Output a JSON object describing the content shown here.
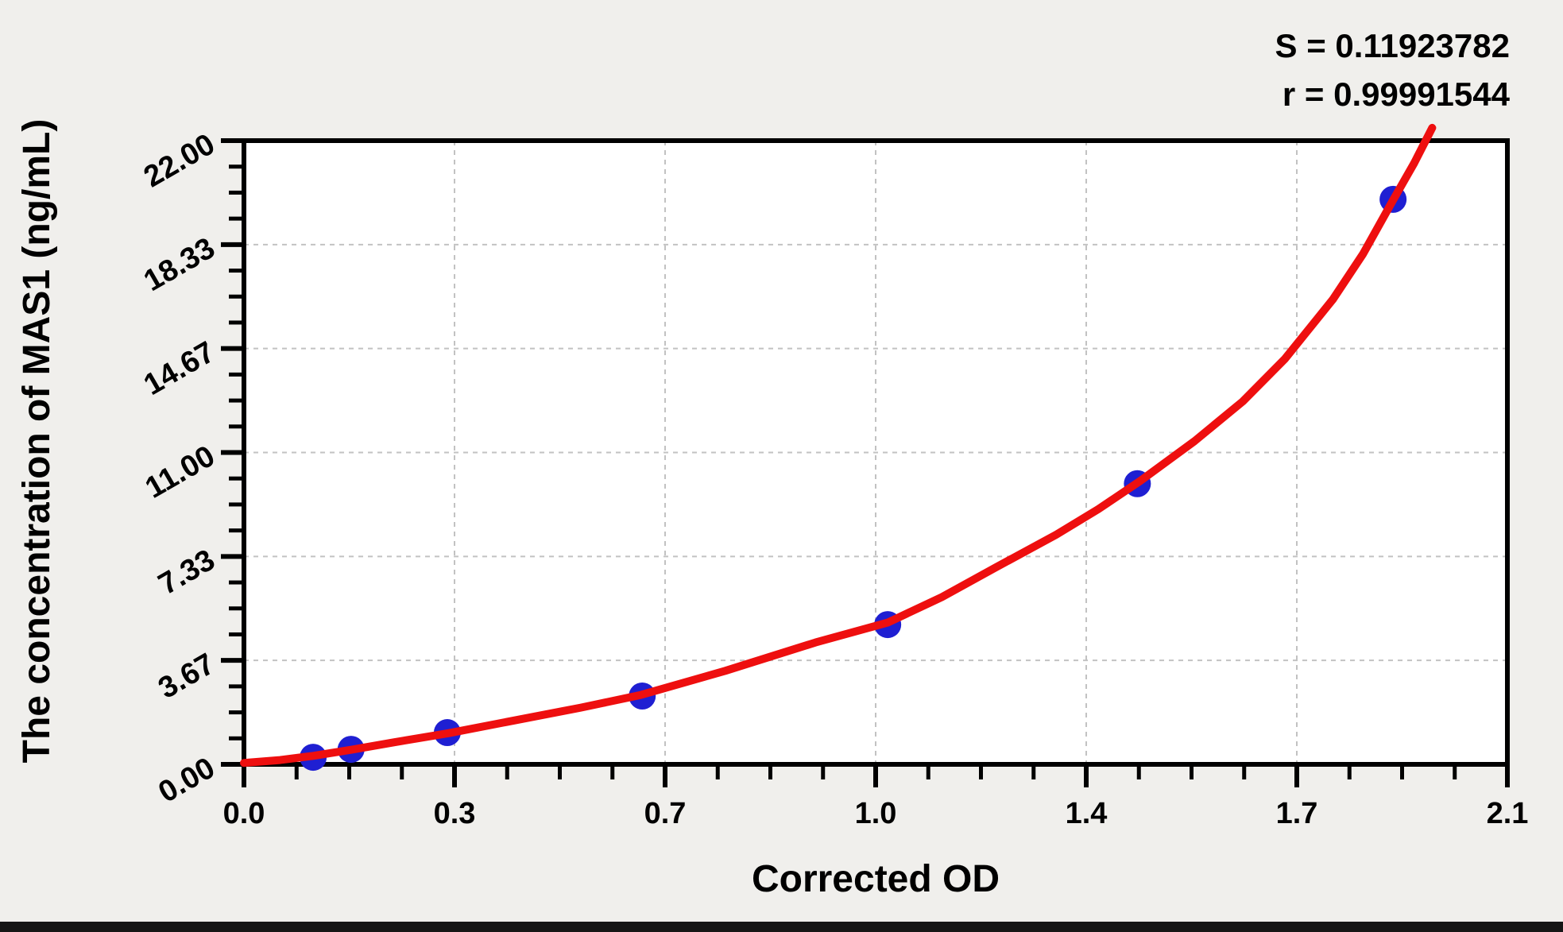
{
  "window": {
    "background_color": "#f0efec",
    "bottom_bar_color": "#161616"
  },
  "stats": {
    "s": "S = 0.11923782",
    "r": "r = 0.99991544"
  },
  "chart_data": {
    "type": "scatter",
    "title": "",
    "xlabel": "Corrected OD",
    "ylabel": "The concentration of MAS1 (ng/mL)",
    "legend": "none",
    "grid": "dashed gray lines at interior major ticks",
    "x_axis": {
      "min": 0,
      "max": 2.1,
      "tick_values": [
        0,
        0.35,
        0.7,
        1.05,
        1.4,
        1.75,
        2.1
      ],
      "tick_labels": [
        "0.0",
        "0.3",
        "0.7",
        "1.0",
        "1.4",
        "1.7",
        "2.1"
      ],
      "minor_divisions": 4
    },
    "y_axis": {
      "min": 0,
      "max": 22,
      "tick_values": [
        0,
        3.667,
        7.333,
        11,
        14.667,
        18.333,
        22
      ],
      "tick_labels": [
        "0.00",
        "3.67",
        "7.33",
        "11.00",
        "14.67",
        "18.33",
        "22.00"
      ],
      "minor_divisions": 4
    },
    "points": [
      {
        "od": 0.115,
        "concentration": 0.25
      },
      {
        "od": 0.178,
        "concentration": 0.53
      },
      {
        "od": 0.338,
        "concentration": 1.12
      },
      {
        "od": 0.662,
        "concentration": 2.41
      },
      {
        "od": 1.07,
        "concentration": 4.93
      },
      {
        "od": 1.485,
        "concentration": 9.9
      },
      {
        "od": 1.91,
        "concentration": 19.93
      }
    ],
    "curve_points": [
      [
        0.0,
        0.05
      ],
      [
        0.06,
        0.15
      ],
      [
        0.115,
        0.3
      ],
      [
        0.18,
        0.52
      ],
      [
        0.25,
        0.78
      ],
      [
        0.34,
        1.1
      ],
      [
        0.45,
        1.55
      ],
      [
        0.56,
        2.0
      ],
      [
        0.66,
        2.45
      ],
      [
        0.8,
        3.3
      ],
      [
        0.95,
        4.3
      ],
      [
        1.07,
        5.0
      ],
      [
        1.16,
        5.9
      ],
      [
        1.25,
        6.95
      ],
      [
        1.35,
        8.1
      ],
      [
        1.42,
        9.0
      ],
      [
        1.49,
        10.0
      ],
      [
        1.58,
        11.4
      ],
      [
        1.66,
        12.8
      ],
      [
        1.73,
        14.3
      ],
      [
        1.81,
        16.4
      ],
      [
        1.86,
        18.0
      ],
      [
        1.91,
        19.9
      ],
      [
        1.945,
        21.2
      ],
      [
        1.975,
        22.45
      ]
    ],
    "colors": {
      "curve": "#ee0f0f",
      "points": "#1f1fd2",
      "grid": "#c2c2c2",
      "axis": "#000000",
      "plot_background": "#ffffff"
    }
  }
}
